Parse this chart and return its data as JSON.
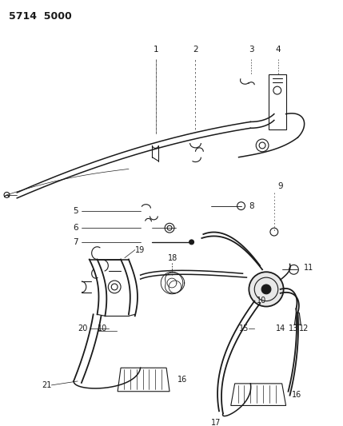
{
  "title": "5714 5000",
  "bg_color": "#ffffff",
  "line_color": "#1a1a1a",
  "title_fontsize": 9,
  "label_fontsize": 7.5,
  "fig_width": 4.29,
  "fig_height": 5.33,
  "dpi": 100
}
